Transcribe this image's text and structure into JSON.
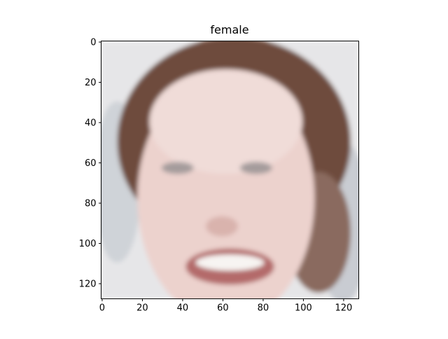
{
  "chart_data": {
    "type": "image",
    "title": "female",
    "xlim": [
      -0.5,
      127.5
    ],
    "ylim": [
      127.5,
      -0.5
    ],
    "xticks": [
      0,
      20,
      40,
      60,
      80,
      100,
      120
    ],
    "yticks": [
      0,
      20,
      40,
      60,
      80,
      100,
      120
    ]
  }
}
